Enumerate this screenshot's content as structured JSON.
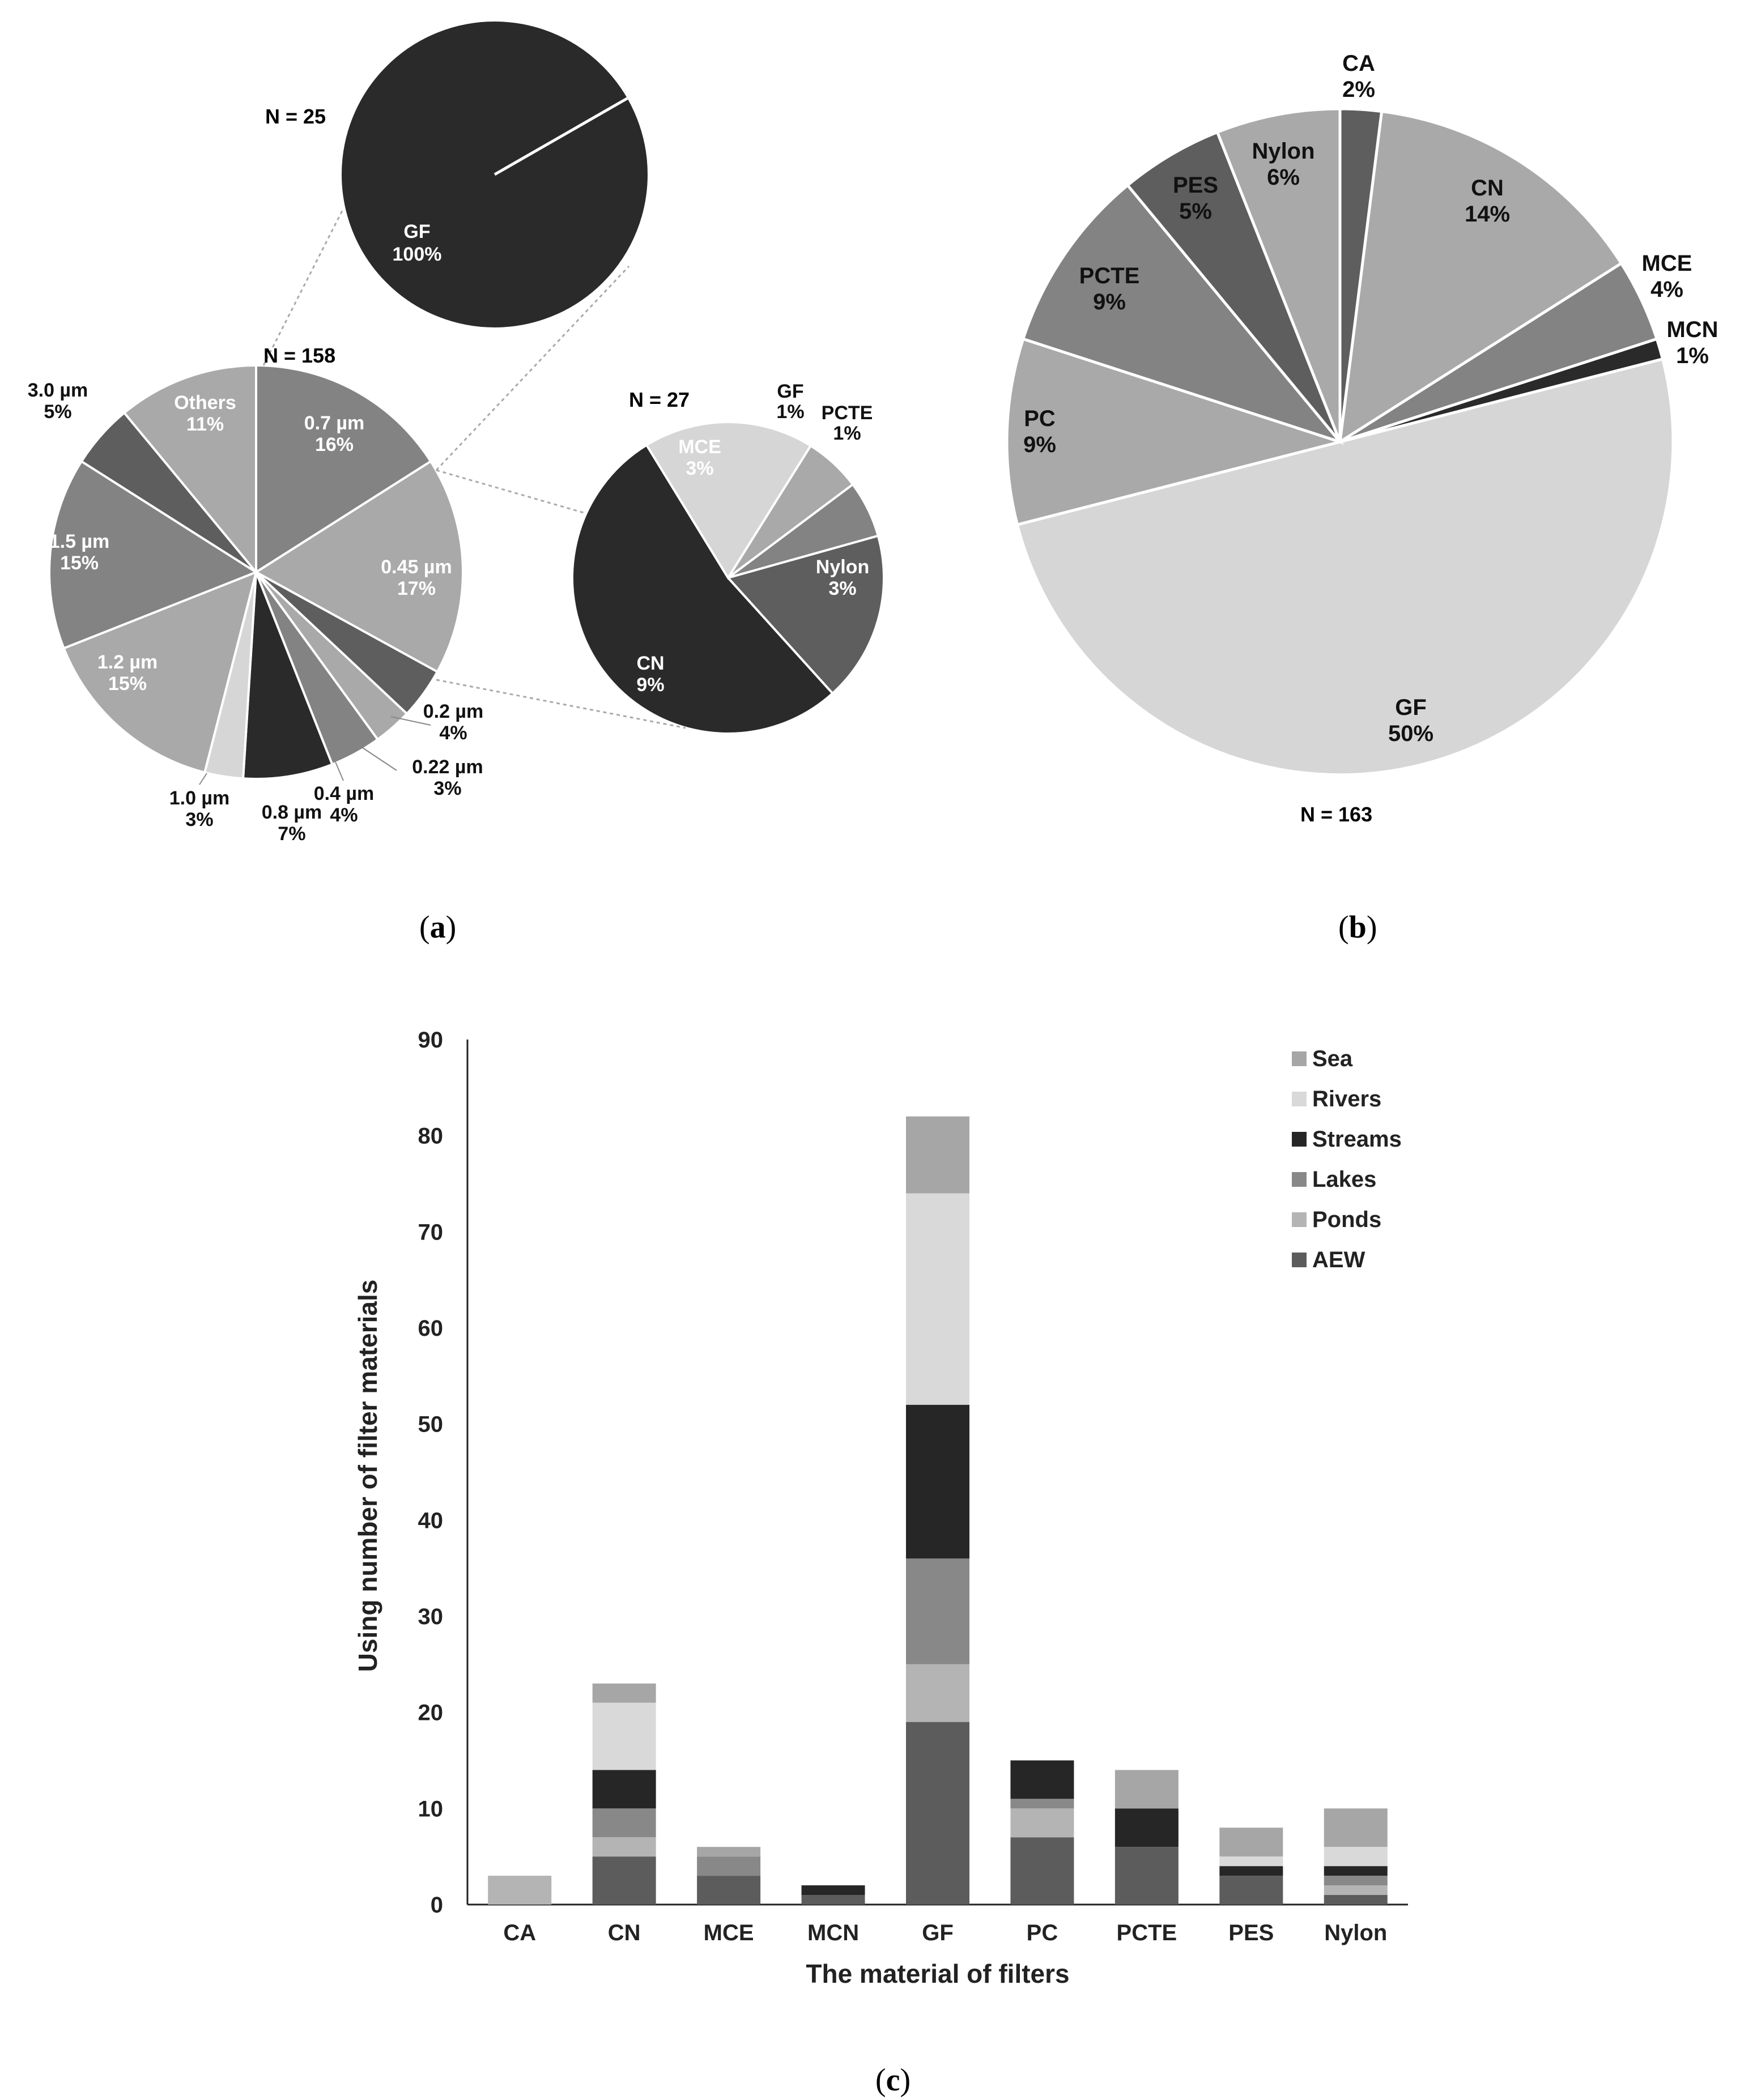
{
  "colors": {
    "d": "#2a2a2a",
    "m": "#5e5e5e",
    "g": "#838383",
    "l": "#a9a9a9",
    "x": "#d6d6d6",
    "sea": "#a6a6a6",
    "rivers": "#d9d9d9",
    "streams": "#262626",
    "lakes": "#888888",
    "ponds": "#b4b4b4",
    "aew": "#5c5c5c"
  },
  "chart_data": [
    {
      "id": "a",
      "type": "pie",
      "caption": "a",
      "n_label": "N = 158",
      "slices": [
        {
          "key": "p07",
          "label": "0.7 µm",
          "pct_label": "16%",
          "value": 16,
          "color": "g"
        },
        {
          "key": "p045",
          "label": "0.45 µm",
          "pct_label": "17%",
          "value": 17,
          "color": "l"
        },
        {
          "key": "p02",
          "label": "0.2 µm",
          "pct_label": "4%",
          "value": 4,
          "color": "m"
        },
        {
          "key": "p022",
          "label": "0.22 µm",
          "pct_label": "3%",
          "value": 3,
          "color": "l"
        },
        {
          "key": "p04",
          "label": "0.4 µm",
          "pct_label": "4%",
          "value": 4,
          "color": "g"
        },
        {
          "key": "p08",
          "label": "0.8 µm",
          "pct_label": "7%",
          "value": 7,
          "color": "d"
        },
        {
          "key": "p10",
          "label": "1.0 µm",
          "pct_label": "3%",
          "value": 3,
          "color": "x"
        },
        {
          "key": "p12",
          "label": "1.2 µm",
          "pct_label": "15%",
          "value": 15,
          "color": "l"
        },
        {
          "key": "p15",
          "label": "1.5 µm",
          "pct_label": "15%",
          "value": 15,
          "color": "g"
        },
        {
          "key": "p30",
          "label": "3.0 µm",
          "pct_label": "5%",
          "value": 5,
          "color": "m"
        },
        {
          "key": "oth",
          "label": "Others",
          "pct_label": "11%",
          "value": 11,
          "color": "l"
        }
      ],
      "sub_pies": [
        {
          "n_label": "N = 25",
          "slices": [
            {
              "key": "gf",
              "label": "GF",
              "pct_label": "100%",
              "value": 100,
              "color": "d"
            }
          ]
        },
        {
          "n_label": "N = 27",
          "slices": [
            {
              "key": "gf",
              "label": "GF",
              "pct_label": "1%",
              "value": 1,
              "color": "l"
            },
            {
              "key": "pcte",
              "label": "PCTE",
              "pct_label": "1%",
              "value": 1,
              "color": "g"
            },
            {
              "key": "nylon",
              "label": "Nylon",
              "pct_label": "3%",
              "value": 3,
              "color": "m"
            },
            {
              "key": "cn",
              "label": "CN",
              "pct_label": "9%",
              "value": 9,
              "color": "d"
            },
            {
              "key": "mce",
              "label": "MCE",
              "pct_label": "3%",
              "value": 3,
              "color": "x"
            }
          ]
        }
      ]
    },
    {
      "id": "b",
      "type": "pie",
      "caption": "b",
      "n_label": "N = 163",
      "slices": [
        {
          "key": "ca",
          "label": "CA",
          "pct_label": "2%",
          "value": 2,
          "color": "m"
        },
        {
          "key": "cn",
          "label": "CN",
          "pct_label": "14%",
          "value": 14,
          "color": "l"
        },
        {
          "key": "mce",
          "label": "MCE",
          "pct_label": "4%",
          "value": 4,
          "color": "g"
        },
        {
          "key": "mcn",
          "label": "MCN",
          "pct_label": "1%",
          "value": 1,
          "color": "d"
        },
        {
          "key": "gf",
          "label": "GF",
          "pct_label": "50%",
          "value": 50,
          "color": "x"
        },
        {
          "key": "pc",
          "label": "PC",
          "pct_label": "9%",
          "value": 9,
          "color": "l"
        },
        {
          "key": "pcte",
          "label": "PCTE",
          "pct_label": "9%",
          "value": 9,
          "color": "g"
        },
        {
          "key": "pes",
          "label": "PES",
          "pct_label": "5%",
          "value": 5,
          "color": "m"
        },
        {
          "key": "nylon",
          "label": "Nylon",
          "pct_label": "6%",
          "value": 6,
          "color": "l"
        }
      ]
    },
    {
      "id": "c",
      "type": "bar",
      "stacked": true,
      "caption": "c",
      "xlabel": "The material of filters",
      "ylabel": "Using number of filter materials",
      "ylim": [
        0,
        90
      ],
      "yticks": [
        "0",
        "10",
        "20",
        "30",
        "40",
        "50",
        "60",
        "70",
        "80",
        "90"
      ],
      "categories": [
        "CA",
        "CN",
        "MCE",
        "MCN",
        "GF",
        "PC",
        "PCTE",
        "PES",
        "Nylon"
      ],
      "series": [
        {
          "name": "AEW",
          "color": "aew",
          "values": [
            0,
            5,
            3,
            1,
            19,
            7,
            6,
            3,
            1
          ]
        },
        {
          "name": "Ponds",
          "color": "ponds",
          "values": [
            3,
            2,
            0,
            0,
            6,
            3,
            0,
            0,
            1
          ]
        },
        {
          "name": "Lakes",
          "color": "lakes",
          "values": [
            0,
            3,
            2,
            0,
            11,
            1,
            0,
            0,
            1
          ]
        },
        {
          "name": "Streams",
          "color": "streams",
          "values": [
            0,
            4,
            0,
            1,
            16,
            4,
            4,
            1,
            1
          ]
        },
        {
          "name": "Rivers",
          "color": "rivers",
          "values": [
            0,
            7,
            0,
            0,
            22,
            0,
            0,
            1,
            2
          ]
        },
        {
          "name": "Sea",
          "color": "sea",
          "values": [
            0,
            2,
            1,
            0,
            8,
            0,
            4,
            3,
            4
          ]
        }
      ],
      "legend_order": [
        "Sea",
        "Rivers",
        "Streams",
        "Lakes",
        "Ponds",
        "AEW"
      ],
      "legend_position": "top-right"
    }
  ]
}
